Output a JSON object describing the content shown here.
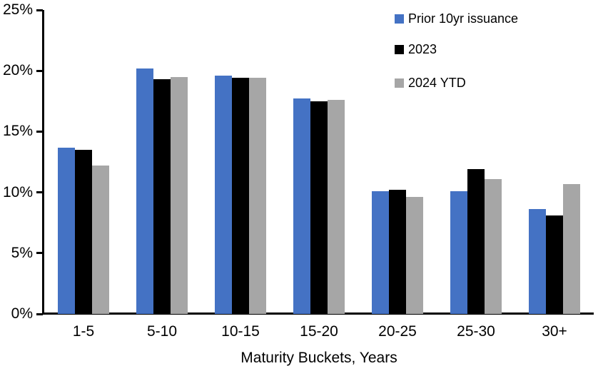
{
  "chart_data": {
    "type": "bar",
    "title": "",
    "xlabel": "Maturity Buckets, Years",
    "ylabel": "",
    "categories": [
      "1-5",
      "5-10",
      "10-15",
      "15-20",
      "20-25",
      "25-30",
      "30+"
    ],
    "series": [
      {
        "name": "Prior 10yr issuance",
        "color": "#4472C4",
        "values": [
          13.7,
          20.2,
          19.6,
          17.7,
          10.1,
          10.1,
          8.6
        ]
      },
      {
        "name": "2023",
        "color": "#000000",
        "values": [
          13.5,
          19.3,
          19.4,
          17.5,
          10.2,
          11.9,
          8.1
        ]
      },
      {
        "name": "2024 YTD",
        "color": "#A6A6A6",
        "values": [
          12.2,
          19.5,
          19.4,
          17.6,
          9.6,
          11.1,
          10.7
        ]
      }
    ],
    "y_axis": {
      "min": 0,
      "max": 25,
      "tick_step": 5,
      "tick_labels": [
        "0%",
        "5%",
        "10%",
        "15%",
        "20%",
        "25%"
      ]
    },
    "legend_position": "top-right",
    "gridlines": false
  },
  "colors": {
    "axis": "#000000",
    "background": "#FFFFFF",
    "text": "#000000"
  }
}
